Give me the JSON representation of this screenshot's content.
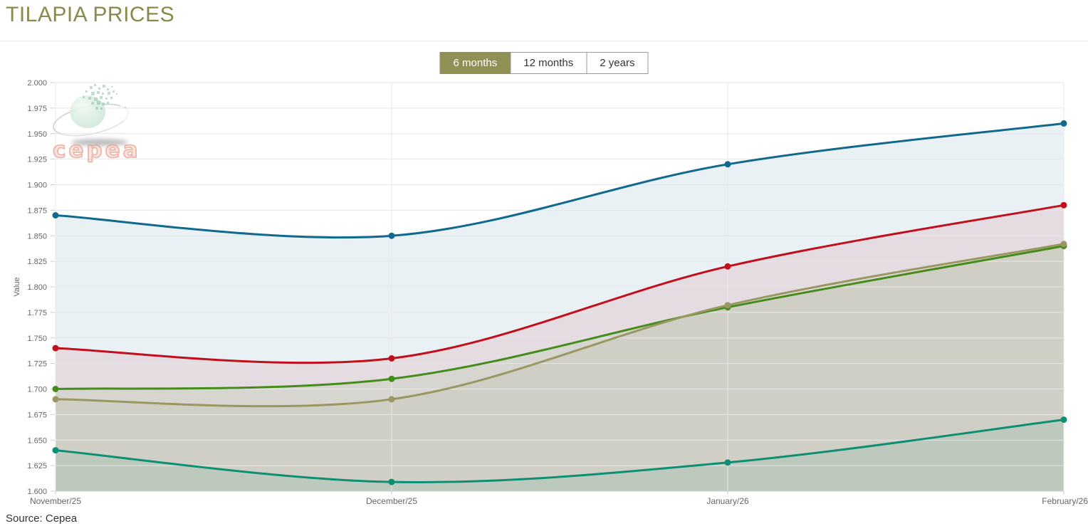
{
  "page": {
    "title": "TILAPIA PRICES",
    "source": "Source: Cepea",
    "title_color": "#8a8a4b",
    "background": "#ffffff"
  },
  "toolbar": {
    "accent_color": "#908f55",
    "buttons": [
      {
        "label": "6 months",
        "selected": true
      },
      {
        "label": "12 months",
        "selected": false
      },
      {
        "label": "2 years",
        "selected": false
      }
    ]
  },
  "watermark": {
    "text": "cepea"
  },
  "chart_data": {
    "type": "line",
    "title": "TILAPIA PRICES",
    "xlabel": "",
    "ylabel": "Value",
    "categories": [
      "November/25",
      "December/25",
      "January/26",
      "February/26"
    ],
    "y_ticks": [
      "1.600",
      "1.625",
      "1.650",
      "1.675",
      "1.700",
      "1.725",
      "1.750",
      "1.775",
      "1.800",
      "1.825",
      "1.850",
      "1.875",
      "1.900",
      "1.925",
      "1.950",
      "1.975",
      "2.000"
    ],
    "ylim": [
      1.6,
      2.0
    ],
    "y_step": 0.025,
    "grid": true,
    "legend": "none",
    "marker": "circle",
    "series": [
      {
        "name": "blue",
        "color": "#11698e",
        "values": [
          1.87,
          1.85,
          1.92,
          1.96
        ]
      },
      {
        "name": "red",
        "color": "#c00f1d",
        "values": [
          1.74,
          1.73,
          1.82,
          1.88
        ]
      },
      {
        "name": "green",
        "color": "#448c1c",
        "values": [
          1.7,
          1.71,
          1.78,
          1.84
        ]
      },
      {
        "name": "olive",
        "color": "#999862",
        "values": [
          1.69,
          1.69,
          1.782,
          1.842
        ]
      },
      {
        "name": "teal",
        "color": "#0d8f73",
        "values": [
          1.64,
          1.609,
          1.628,
          1.67
        ]
      }
    ]
  }
}
